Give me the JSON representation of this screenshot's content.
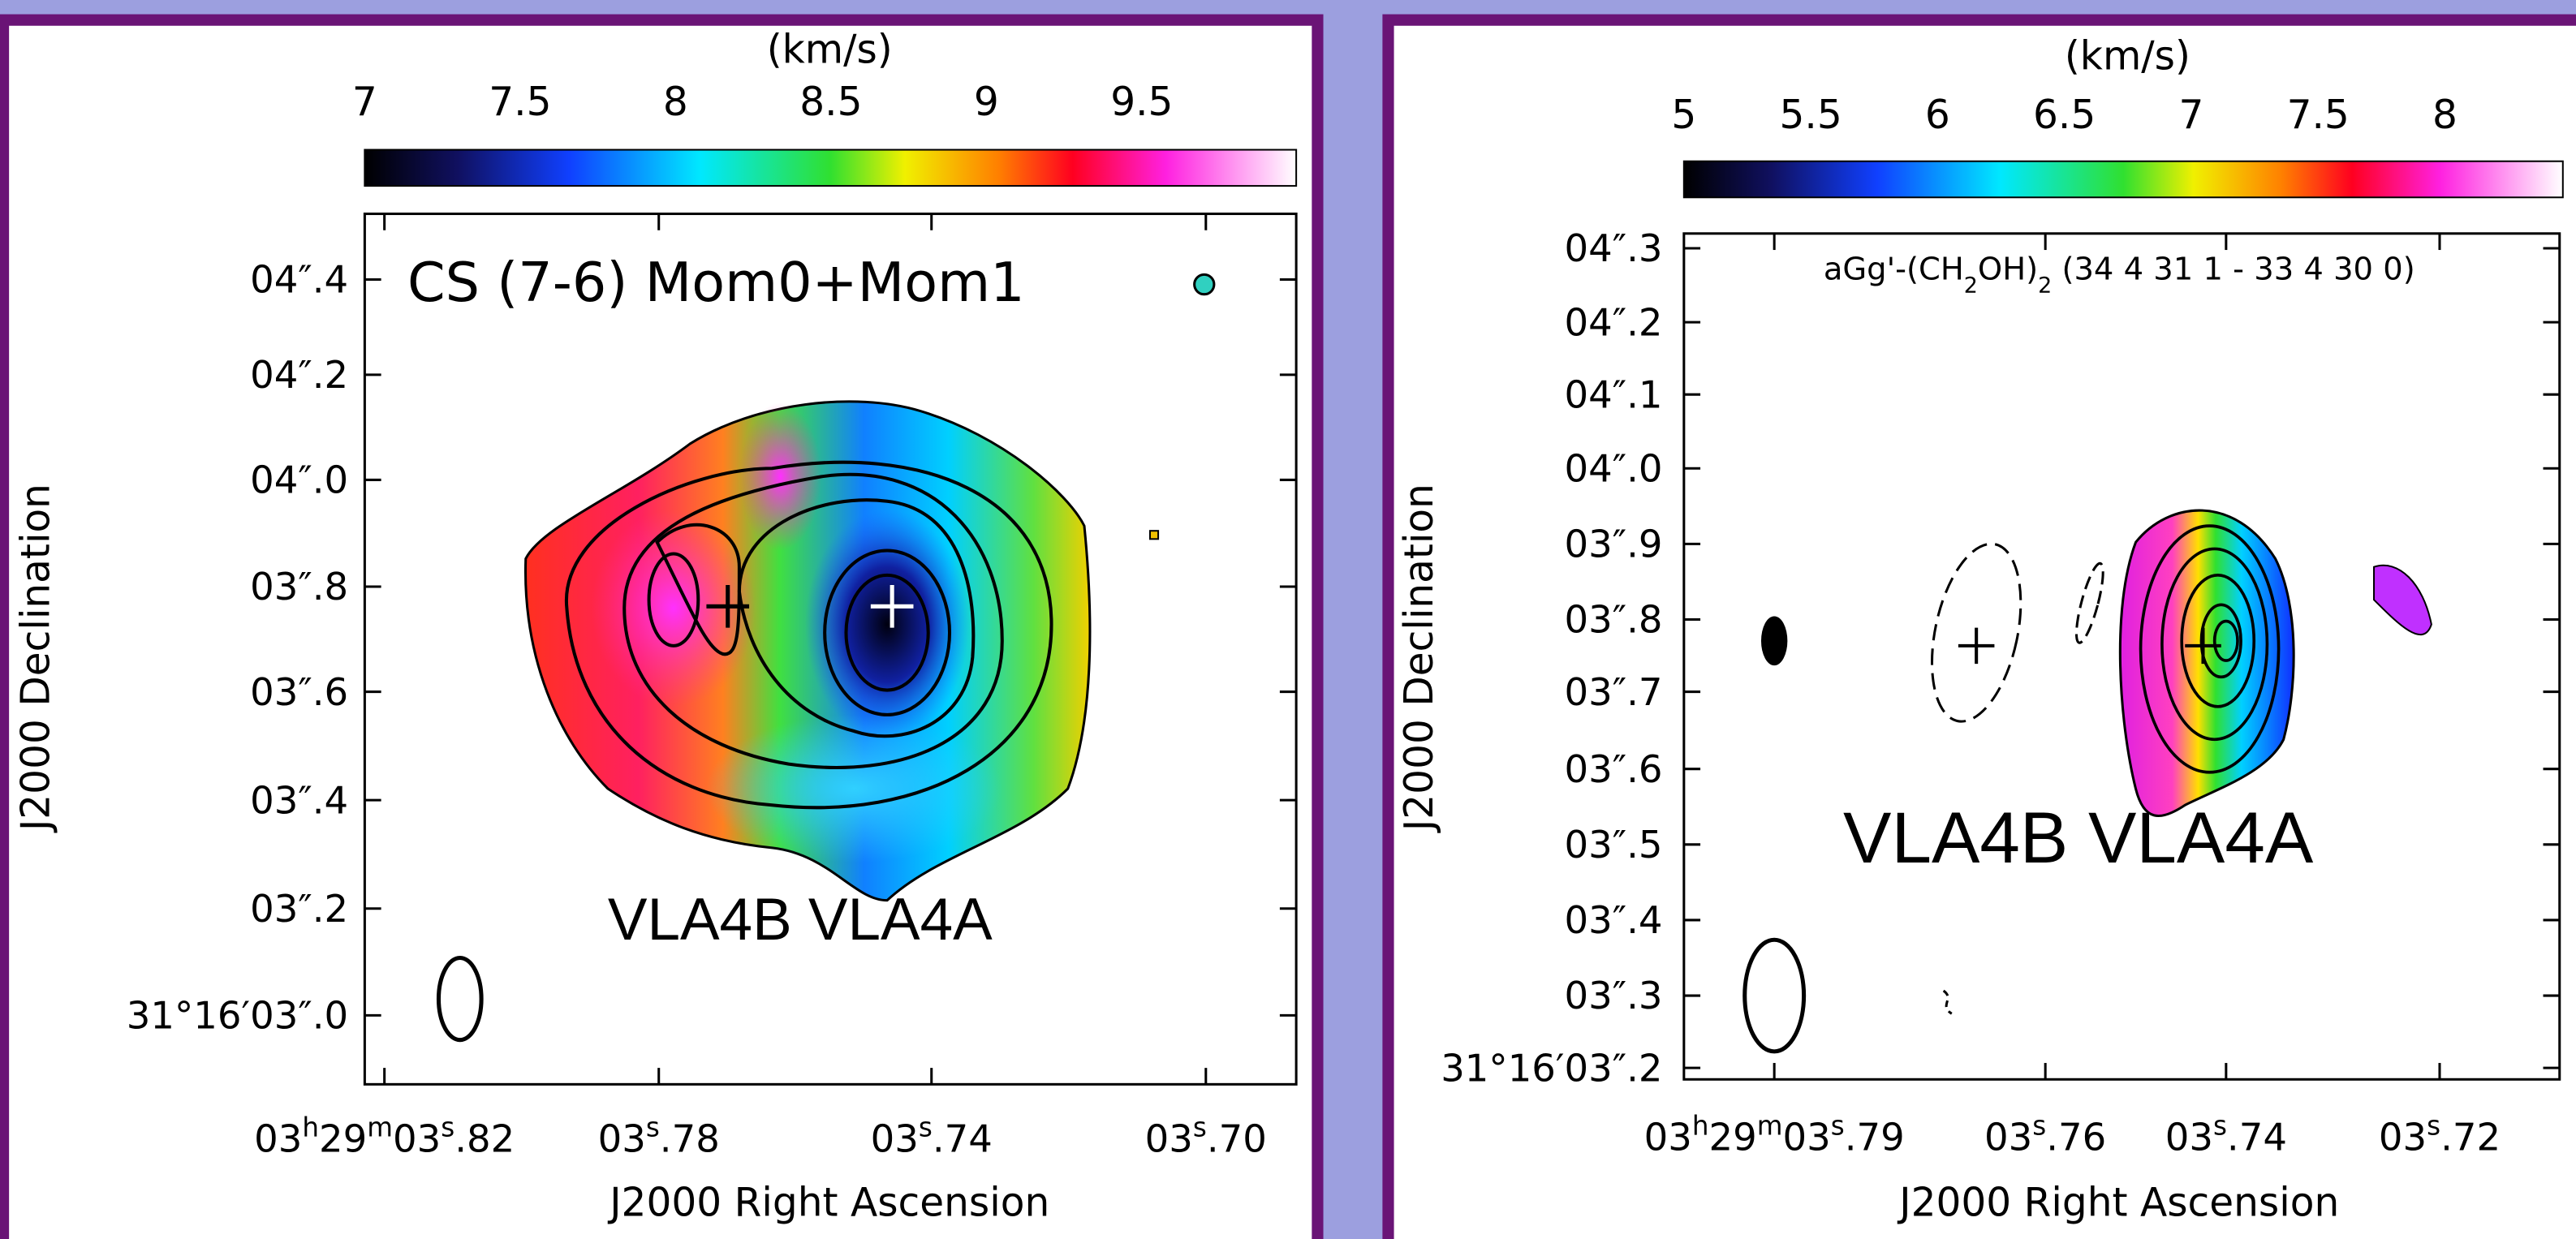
{
  "left": {
    "colorbar": {
      "unit": "(km/s)",
      "ticks": [
        7,
        7.5,
        8,
        8.5,
        9,
        9.5
      ]
    },
    "title": "CS (7-6) Mom0+Mom1",
    "sources": "VLA4B VLA4A",
    "y_axis": {
      "label": "J2000 Declination",
      "ticks": [
        "04″.4",
        "04″.2",
        "04″.0",
        "03″.8",
        "03″.6",
        "03″.4",
        "03″.2",
        "31°16′03″.0"
      ]
    },
    "x_axis": {
      "label": "J2000 Right Ascension",
      "ticks": [
        [
          "03",
          "h",
          "29",
          "m",
          "03",
          "s",
          ".82"
        ],
        [
          "03",
          "s",
          ".78"
        ],
        [
          "03",
          "s",
          ".74"
        ],
        [
          "03",
          "s",
          ".70"
        ]
      ]
    }
  },
  "right": {
    "colorbar": {
      "unit": "(km/s)",
      "ticks": [
        5,
        5.5,
        6,
        6.5,
        7,
        7.5,
        8
      ]
    },
    "title": [
      "aGg'-(CH",
      "2",
      "OH)",
      "2",
      " (34 4 31 1 - 33 4 30 0)"
    ],
    "sources": "VLA4B VLA4A",
    "y_axis": {
      "label": "J2000 Declination",
      "ticks": [
        "04″.3",
        "04″.2",
        "04″.1",
        "04″.0",
        "03″.9",
        "03″.8",
        "03″.7",
        "03″.6",
        "03″.5",
        "03″.4",
        "03″.3",
        "31°16′03″.2"
      ]
    },
    "x_axis": {
      "label": "J2000 Right Ascension",
      "ticks": [
        [
          "03",
          "h",
          "29",
          "m",
          "03",
          "s",
          ".79"
        ],
        [
          "03",
          "s",
          ".76"
        ],
        [
          "03",
          "s",
          ".74"
        ],
        [
          "03",
          "s",
          ".72"
        ]
      ]
    }
  }
}
